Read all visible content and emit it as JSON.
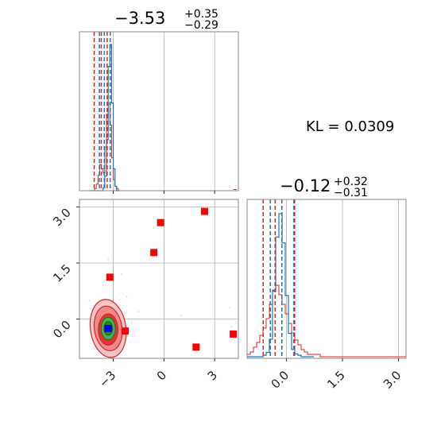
{
  "chart_data": {
    "type": "corner",
    "parameters": 2,
    "colors": {
      "primary": "#1f77b4",
      "secondary": "#d62728",
      "contour_mid": "#2ca02c",
      "marker": "#ff0000",
      "truth": "#0000ff"
    },
    "titles": [
      {
        "main": "−3.53",
        "sup": "+0.35",
        "sub": "−0.29"
      },
      {
        "main": "−0.12",
        "sup": "+0.32",
        "sub": "−0.31"
      }
    ],
    "annotation": "KL = 0.0309",
    "x_range": [
      -5.0,
      4.4
    ],
    "y_range": [
      -1.05,
      3.2
    ],
    "x_ticks": [
      -3,
      0,
      3
    ],
    "x_tick_labels": [
      "−3",
      "0",
      "3"
    ],
    "y_ticks": [
      0.0,
      1.5,
      3.0
    ],
    "y_tick_labels": [
      "0.0",
      "1.5",
      "3.0"
    ],
    "y_hist_range": [
      -1.05,
      3.2
    ],
    "y_hist_ticks": [
      0.0,
      1.5,
      3.0
    ],
    "y_hist_tick_labels": [
      "0.0",
      "1.5",
      "3.0"
    ],
    "grid": true,
    "hist_x": {
      "bin_start": -4.4,
      "bin_width": 0.1,
      "blue": [
        0,
        0,
        0,
        0,
        0,
        0,
        0,
        0,
        2,
        10,
        35,
        85,
        100,
        60,
        15,
        3,
        0,
        0
      ],
      "red": [
        0,
        0,
        0,
        1,
        3,
        7,
        12,
        10,
        8,
        20,
        35,
        40,
        30,
        15,
        5,
        2,
        1,
        0
      ],
      "blue_quantiles": [
        -3.82,
        -3.53,
        -3.18
      ],
      "red_quantiles": [
        -4.13,
        -3.71,
        -3.36
      ],
      "red_tail_x": [
        4.1,
        4.3
      ]
    },
    "hist_y": {
      "bin_start": -1.05,
      "bin_width": 0.085,
      "blue": [
        0,
        0,
        0,
        0,
        0,
        1,
        3,
        12,
        45,
        82,
        98,
        78,
        42,
        16,
        5,
        2,
        1,
        0,
        0,
        0,
        0
      ],
      "red": [
        1,
        2,
        4,
        6,
        9,
        12,
        16,
        22,
        28,
        30,
        26,
        22,
        18,
        14,
        10,
        7,
        5,
        3,
        2,
        1,
        1,
        1,
        1,
        0,
        0,
        0,
        0,
        0,
        0,
        0,
        0,
        0,
        0,
        0,
        0,
        0,
        0,
        0,
        0,
        0,
        0,
        0,
        0,
        0,
        0,
        0,
        0,
        0,
        0,
        0
      ],
      "blue_quantiles": [
        -0.43,
        -0.12,
        0.2
      ],
      "red_quantiles": [
        -0.62,
        -0.3,
        0.22
      ],
      "red_tail_x": [
        1.75,
        2.8
      ]
    },
    "scatter_markers": [
      {
        "x": -3.2,
        "y": 1.12
      },
      {
        "x": -0.2,
        "y": 2.58
      },
      {
        "x": -0.6,
        "y": 1.78
      },
      {
        "x": 2.4,
        "y": 2.88
      },
      {
        "x": -2.3,
        "y": -0.32
      },
      {
        "x": 1.9,
        "y": -0.75
      },
      {
        "x": 4.1,
        "y": -0.4
      }
    ],
    "truth_marker": {
      "x": -3.3,
      "y": -0.25
    }
  }
}
